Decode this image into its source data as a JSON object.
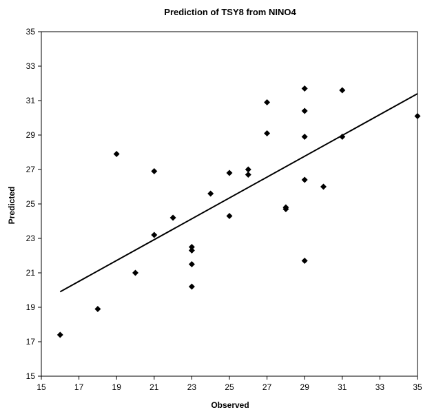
{
  "chart_data": {
    "type": "scatter",
    "title": "Prediction of TSY8 from NINO4",
    "xlabel": "Observed",
    "ylabel": "Predicted",
    "xlim": [
      15,
      35
    ],
    "ylim": [
      15,
      35
    ],
    "xticks": [
      "15",
      "17",
      "19",
      "21",
      "23",
      "25",
      "27",
      "29",
      "31",
      "33",
      "35"
    ],
    "yticks": [
      "15",
      "17",
      "19",
      "21",
      "23",
      "25",
      "27",
      "29",
      "31",
      "33",
      "35"
    ],
    "grid": false,
    "legend": "none",
    "marker_color": "#000000",
    "points": [
      {
        "x": 16,
        "y": 17.4
      },
      {
        "x": 18,
        "y": 18.9
      },
      {
        "x": 19,
        "y": 27.9
      },
      {
        "x": 20,
        "y": 21.0
      },
      {
        "x": 21,
        "y": 26.9
      },
      {
        "x": 21,
        "y": 23.2
      },
      {
        "x": 22,
        "y": 24.2
      },
      {
        "x": 23,
        "y": 22.5
      },
      {
        "x": 23,
        "y": 22.3
      },
      {
        "x": 23,
        "y": 21.5
      },
      {
        "x": 23,
        "y": 20.2
      },
      {
        "x": 24,
        "y": 25.6
      },
      {
        "x": 25,
        "y": 26.8
      },
      {
        "x": 25,
        "y": 24.3
      },
      {
        "x": 26,
        "y": 27.0
      },
      {
        "x": 26,
        "y": 26.7
      },
      {
        "x": 27,
        "y": 30.9
      },
      {
        "x": 27,
        "y": 29.1
      },
      {
        "x": 28,
        "y": 24.8
      },
      {
        "x": 28,
        "y": 24.7
      },
      {
        "x": 29,
        "y": 31.7
      },
      {
        "x": 29,
        "y": 30.4
      },
      {
        "x": 29,
        "y": 28.9
      },
      {
        "x": 29,
        "y": 26.4
      },
      {
        "x": 29,
        "y": 21.7
      },
      {
        "x": 30,
        "y": 26.0
      },
      {
        "x": 31,
        "y": 31.6
      },
      {
        "x": 31,
        "y": 28.9
      },
      {
        "x": 35,
        "y": 30.1
      }
    ],
    "fit_line": {
      "x": [
        16,
        35
      ],
      "y": [
        19.9,
        31.4
      ]
    }
  }
}
